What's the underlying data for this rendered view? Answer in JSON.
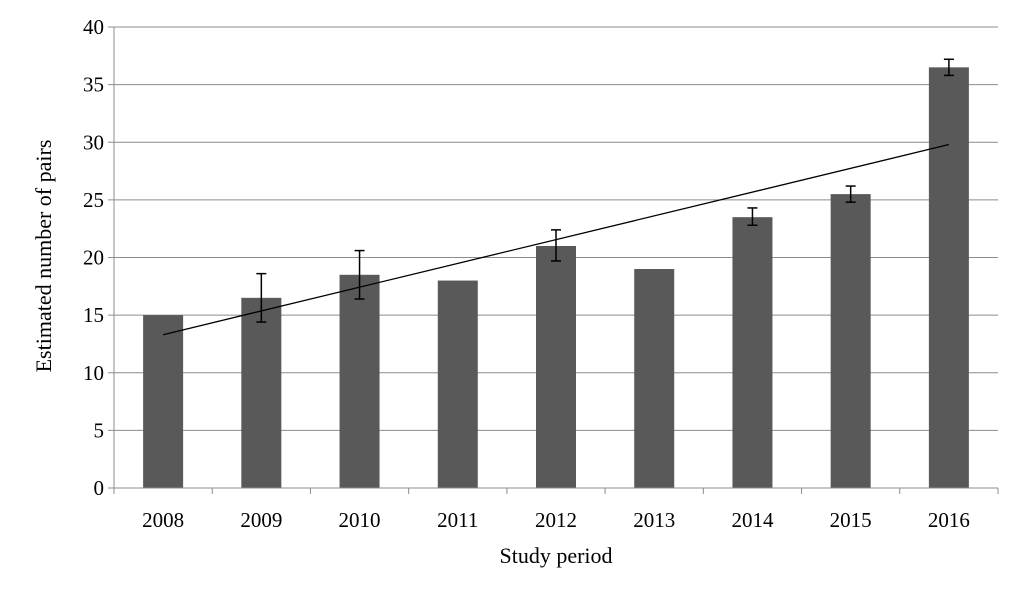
{
  "chart_data": {
    "type": "bar",
    "title": "",
    "xlabel": "Study period",
    "ylabel": "Estimated number of pairs",
    "categories": [
      "2008",
      "2009",
      "2010",
      "2011",
      "2012",
      "2013",
      "2014",
      "2015",
      "2016"
    ],
    "values": [
      15,
      16.5,
      18.5,
      18,
      21,
      19,
      23.5,
      25.5,
      36.5
    ],
    "error_low": [
      null,
      14.4,
      16.4,
      null,
      19.7,
      null,
      22.8,
      24.8,
      35.8
    ],
    "error_high": [
      null,
      18.6,
      20.6,
      null,
      22.4,
      null,
      24.3,
      26.2,
      37.2
    ],
    "trendline": {
      "type": "linear",
      "start": 13.3,
      "end": 29.8
    },
    "ylim": [
      0,
      40
    ],
    "yticks": [
      0,
      5,
      10,
      15,
      20,
      25,
      30,
      35,
      40
    ],
    "grid": true,
    "legend": "none",
    "colors": {
      "bar": "#595959",
      "grid": "#8c8c8c",
      "axis": "#8c8c8c",
      "trend": "#000000",
      "error": "#000000"
    }
  }
}
